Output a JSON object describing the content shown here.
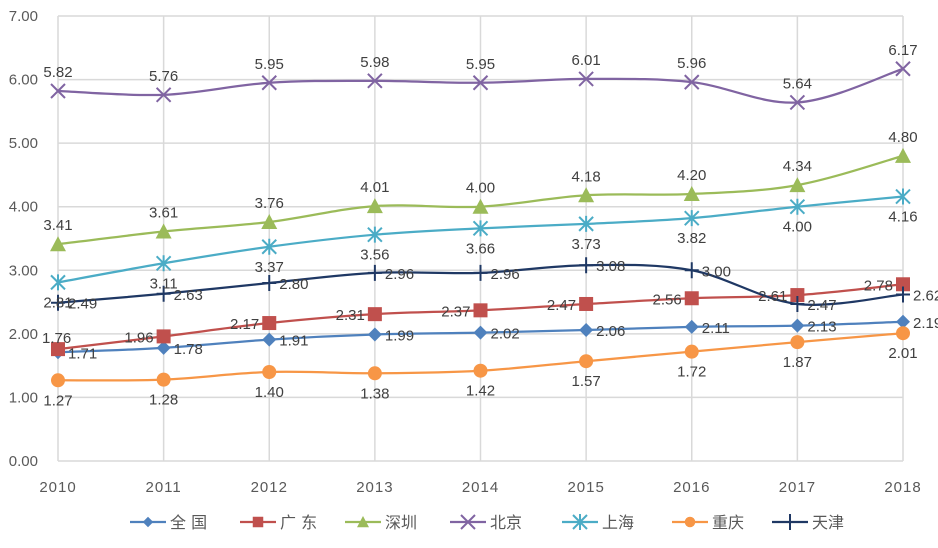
{
  "chart_data": {
    "type": "line",
    "title": "",
    "xlabel": "",
    "ylabel": "",
    "x": [
      "2010",
      "2011",
      "2012",
      "2013",
      "2014",
      "2015",
      "2016",
      "2017",
      "2018"
    ],
    "ylim": [
      0,
      7
    ],
    "yticks": [
      "0.00",
      "1.00",
      "2.00",
      "3.00",
      "4.00",
      "5.00",
      "6.00",
      "7.00"
    ],
    "grid": true,
    "smooth": true,
    "legend_position": "bottom",
    "series": [
      {
        "name": "全 国",
        "color": "#4F81BD",
        "marker": "diamond",
        "label_pos": "right",
        "values": [
          1.71,
          1.78,
          1.91,
          1.99,
          2.02,
          2.06,
          2.11,
          2.13,
          2.19
        ]
      },
      {
        "name": "广 东",
        "color": "#C0504D",
        "marker": "square",
        "label_pos": "left",
        "values": [
          1.76,
          1.96,
          2.17,
          2.31,
          2.37,
          2.47,
          2.56,
          2.61,
          2.78
        ]
      },
      {
        "name": "深圳",
        "color": "#9BBB59",
        "marker": "triangle",
        "label_pos": "above",
        "values": [
          3.41,
          3.61,
          3.76,
          4.01,
          4.0,
          4.18,
          4.2,
          4.34,
          4.8
        ]
      },
      {
        "name": "北京",
        "color": "#8064A2",
        "marker": "x",
        "label_pos": "above",
        "values": [
          5.82,
          5.76,
          5.95,
          5.98,
          5.95,
          6.01,
          5.96,
          5.64,
          6.17
        ]
      },
      {
        "name": "上海",
        "color": "#4BACC6",
        "marker": "star",
        "label_pos": "below",
        "values": [
          2.81,
          3.11,
          3.37,
          3.56,
          3.66,
          3.73,
          3.82,
          4.0,
          4.16
        ]
      },
      {
        "name": "重庆",
        "color": "#F79646",
        "marker": "circle",
        "label_pos": "below",
        "values": [
          1.27,
          1.28,
          1.4,
          1.38,
          1.42,
          1.57,
          1.72,
          1.87,
          2.01
        ]
      },
      {
        "name": "天津",
        "color": "#1F3864",
        "marker": "plus",
        "label_pos": "right",
        "values": [
          2.49,
          2.63,
          2.8,
          2.96,
          2.96,
          3.08,
          3.0,
          2.47,
          2.62
        ]
      }
    ]
  }
}
